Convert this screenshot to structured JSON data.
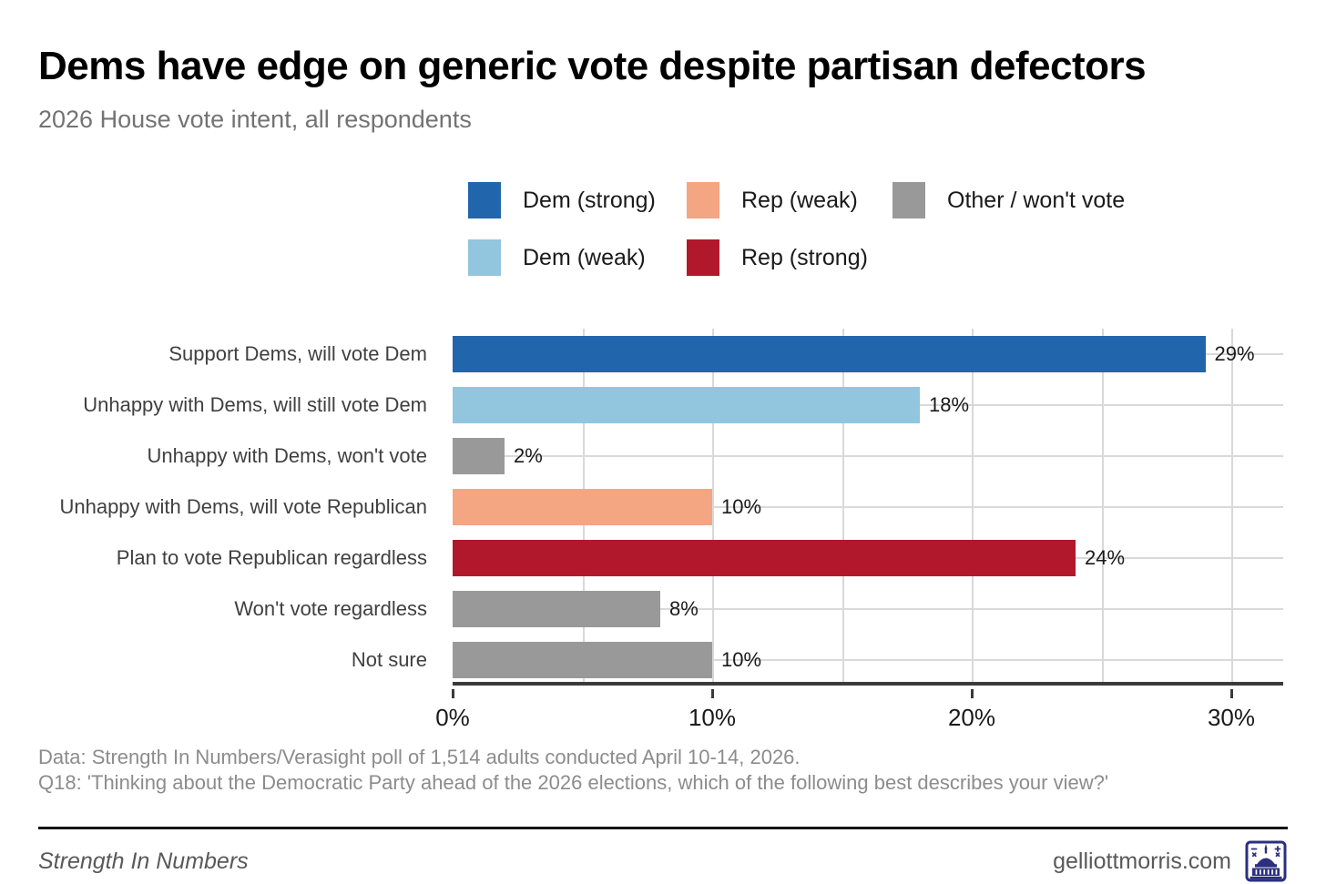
{
  "colors": {
    "dem_strong": "#2166ac",
    "dem_weak": "#92c5de",
    "rep_weak": "#f4a582",
    "rep_strong": "#b2182b",
    "other": "#999999",
    "grid": "#d9d9d9",
    "axis": "#3a3a3a",
    "title": "#000000",
    "subtitle": "#737373",
    "category_label": "#404040",
    "value_label": "#1a1a1a",
    "caption": "#8c8c8c",
    "footer_text": "#595959",
    "logo": "#2b2f7e"
  },
  "header": {
    "title": "Dems have edge on generic vote despite partisan defectors",
    "subtitle": "2026 House vote intent, all respondents"
  },
  "legend": {
    "items": [
      {
        "label": "Dem (strong)",
        "color_key": "dem_strong"
      },
      {
        "label": "Dem (weak)",
        "color_key": "dem_weak"
      },
      {
        "label": "Rep (weak)",
        "color_key": "rep_weak"
      },
      {
        "label": "Rep (strong)",
        "color_key": "rep_strong"
      },
      {
        "label": "Other / won't vote",
        "color_key": "other"
      }
    ]
  },
  "chart_data": {
    "type": "bar",
    "orientation": "horizontal",
    "title": "Dems have edge on generic vote despite partisan defectors",
    "subtitle": "2026 House vote intent, all respondents",
    "categories": [
      "Support Dems, will vote Dem",
      "Unhappy with Dems, will still vote Dem",
      "Unhappy with Dems, won't vote",
      "Unhappy with Dems, will vote Republican",
      "Plan to vote Republican regardless",
      "Won't vote regardless",
      "Not sure"
    ],
    "values": [
      29,
      18,
      2,
      10,
      24,
      8,
      10
    ],
    "value_labels": [
      "29%",
      "18%",
      "2%",
      "10%",
      "24%",
      "8%",
      "10%"
    ],
    "color_keys": [
      "dem_strong",
      "dem_weak",
      "other",
      "rep_weak",
      "rep_strong",
      "other",
      "other"
    ],
    "x_max": 32,
    "grid_interval": 5,
    "x_tick_values": [
      0,
      10,
      20,
      30
    ],
    "x_tick_labels": [
      "0%",
      "10%",
      "20%",
      "30%"
    ],
    "xlabel": "",
    "ylabel": "",
    "legend_position": "top",
    "grid": "vertical every 5%, horizontal line per category row"
  },
  "caption": {
    "line1": "Data: Strength In Numbers/Verasight poll of 1,514 adults conducted April 10-14, 2026.",
    "line2": "Q18: 'Thinking about the Democratic Party ahead of the 2026 elections, which of the following best describes your view?'"
  },
  "footer": {
    "brand": "Strength In Numbers",
    "site": "gelliottmorris.com",
    "logo_icon": "capitol-logo-icon"
  }
}
